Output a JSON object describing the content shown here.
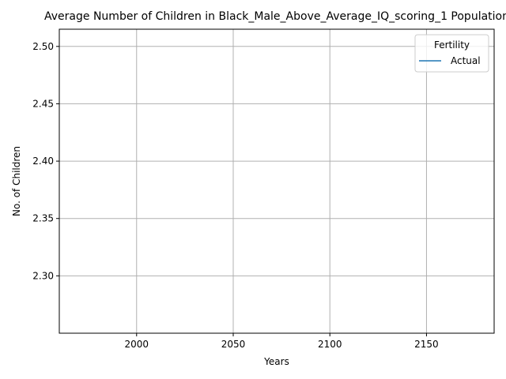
{
  "chart_data": {
    "type": "line",
    "title": "Average Number of Children in Black_Male_Above_Average_IQ_scoring_1 Population",
    "xlabel": "Years",
    "ylabel": "No. of Children",
    "xlim": [
      1960,
      2185
    ],
    "ylim": [
      2.25,
      2.515
    ],
    "x_ticks": [
      2000,
      2050,
      2100,
      2150
    ],
    "y_ticks": [
      2.3,
      2.35,
      2.4,
      2.45,
      2.5
    ],
    "x_tick_labels": [
      "2000",
      "2050",
      "2100",
      "2150"
    ],
    "y_tick_labels": [
      "2.30",
      "2.35",
      "2.40",
      "2.45",
      "2.50"
    ],
    "grid": true,
    "legend": {
      "title": "Fertility",
      "placement": "top-right",
      "entries": [
        "Actual"
      ]
    },
    "series": [
      {
        "name": "Actual",
        "color": "#1f77b4",
        "x": [],
        "y": []
      }
    ]
  }
}
